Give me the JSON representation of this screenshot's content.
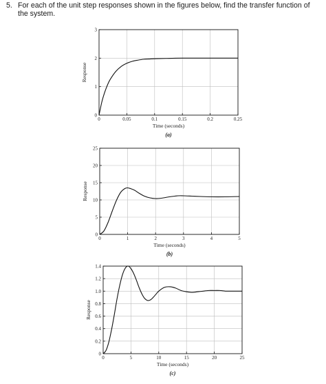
{
  "question": {
    "number": "5.",
    "text": "For each of the unit step responses shown in the figures below, find the transfer function of the system."
  },
  "chart_data": [
    {
      "type": "line",
      "caption": "(a)",
      "xlabel": "Time (seconds)",
      "ylabel": "Response",
      "xlim": [
        0,
        0.25
      ],
      "ylim": [
        0,
        3
      ],
      "xticks": [
        0,
        0.05,
        0.1,
        0.15,
        0.2,
        0.25
      ],
      "xtick_labels": [
        "0",
        "0.05",
        "0.1",
        "0.15",
        "0.2",
        "0.25"
      ],
      "yticks": [
        0,
        1,
        2,
        3
      ],
      "ytick_labels": [
        "0",
        "1",
        "2",
        "3"
      ],
      "grid": true,
      "series": [
        {
          "x": [
            0,
            0.005,
            0.01,
            0.015,
            0.02,
            0.03,
            0.04,
            0.05,
            0.06,
            0.07,
            0.08,
            0.09,
            0.1,
            0.12,
            0.15,
            0.2,
            0.25
          ],
          "y": [
            0,
            0.46,
            0.79,
            1.05,
            1.25,
            1.53,
            1.71,
            1.82,
            1.89,
            1.93,
            1.96,
            1.97,
            1.98,
            1.99,
            2.0,
            2.0,
            2.0
          ]
        }
      ]
    },
    {
      "type": "line",
      "caption": "(b)",
      "xlabel": "Time (seconds)",
      "ylabel": "Response",
      "xlim": [
        0,
        5
      ],
      "ylim": [
        0,
        25
      ],
      "xticks": [
        0,
        1,
        2,
        3,
        4,
        5
      ],
      "xtick_labels": [
        "0",
        "1",
        "2",
        "3",
        "4",
        "5"
      ],
      "yticks": [
        0,
        5,
        10,
        15,
        20,
        25
      ],
      "ytick_labels": [
        "0",
        "5",
        "10",
        "15",
        "20",
        "25"
      ],
      "grid": true,
      "series": [
        {
          "x": [
            0,
            0.15,
            0.3,
            0.45,
            0.6,
            0.75,
            0.9,
            1.0,
            1.1,
            1.25,
            1.4,
            1.6,
            1.8,
            2.0,
            2.2,
            2.5,
            2.8,
            3.0,
            3.3,
            3.6,
            4.0,
            4.5,
            5.0
          ],
          "y": [
            0,
            1.0,
            3.5,
            6.8,
            9.9,
            12.2,
            13.3,
            13.5,
            13.3,
            12.8,
            12.0,
            11.1,
            10.6,
            10.4,
            10.5,
            10.9,
            11.2,
            11.2,
            11.1,
            11.0,
            10.9,
            10.9,
            11.0
          ]
        }
      ]
    },
    {
      "type": "line",
      "caption": "(c)",
      "xlabel": "Time (seconds)",
      "ylabel": "Response",
      "xlim": [
        0,
        25
      ],
      "ylim": [
        0,
        1.4
      ],
      "xticks": [
        0,
        5,
        10,
        15,
        20,
        25
      ],
      "xtick_labels": [
        "0",
        "5",
        "10",
        "15",
        "20",
        "25"
      ],
      "yticks": [
        0,
        0.2,
        0.4,
        0.6,
        0.8,
        1.0,
        1.2,
        1.4
      ],
      "ytick_labels": [
        "0",
        "0.2",
        "0.4",
        "0.6",
        "0.8",
        "1.0",
        "1.2",
        "1.4"
      ],
      "grid": true,
      "series": [
        {
          "x": [
            0,
            0.5,
            1,
            1.5,
            2,
            2.5,
            3,
            3.5,
            4,
            4.5,
            5,
            5.5,
            6,
            6.5,
            7,
            7.5,
            8,
            8.5,
            9,
            9.5,
            10,
            11,
            12,
            13,
            14,
            15,
            16,
            17,
            18,
            19,
            20,
            21,
            22,
            23,
            24,
            25
          ],
          "y": [
            0,
            0.05,
            0.18,
            0.38,
            0.62,
            0.88,
            1.1,
            1.27,
            1.37,
            1.4,
            1.36,
            1.28,
            1.17,
            1.05,
            0.95,
            0.88,
            0.85,
            0.86,
            0.9,
            0.95,
            1.0,
            1.06,
            1.07,
            1.05,
            1.01,
            0.99,
            0.98,
            0.99,
            1.0,
            1.01,
            1.01,
            1.01,
            1.0,
            1.0,
            1.0,
            1.0
          ]
        }
      ]
    }
  ]
}
